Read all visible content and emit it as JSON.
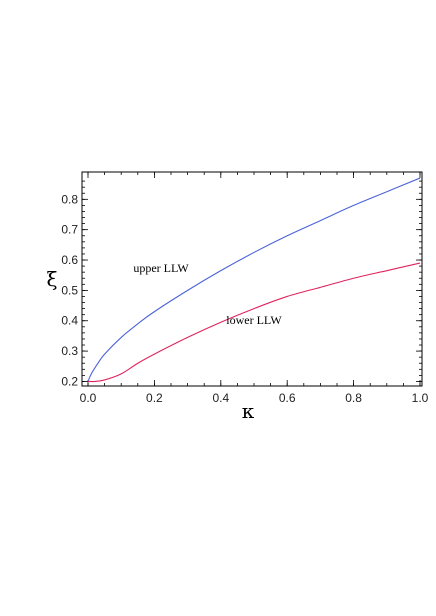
{
  "chart_data": {
    "type": "line",
    "title": "",
    "xlabel": "κ",
    "ylabel": "ξ",
    "xlim": [
      0.0,
      1.0
    ],
    "ylim": [
      0.185,
      0.89
    ],
    "grid": false,
    "x_ticks": [
      0.0,
      0.2,
      0.4,
      0.6,
      0.8,
      1.0
    ],
    "x_tick_labels": [
      "0.0",
      "0.2",
      "0.4",
      "0.6",
      "0.8",
      "1.0"
    ],
    "y_ticks": [
      0.2,
      0.3,
      0.4,
      0.5,
      0.6,
      0.7,
      0.8
    ],
    "y_tick_labels": [
      "0.2",
      "0.3",
      "0.4",
      "0.5",
      "0.6",
      "0.7",
      "0.8"
    ],
    "series": [
      {
        "name": "upper LLW",
        "color": "#4a63d8",
        "x": [
          0.0,
          0.01,
          0.03,
          0.05,
          0.1,
          0.15,
          0.2,
          0.3,
          0.4,
          0.5,
          0.6,
          0.7,
          0.8,
          0.9,
          1.0
        ],
        "y": [
          0.2,
          0.225,
          0.26,
          0.29,
          0.345,
          0.39,
          0.43,
          0.5,
          0.565,
          0.625,
          0.68,
          0.73,
          0.78,
          0.825,
          0.87
        ]
      },
      {
        "name": "lower LLW",
        "color": "#e0245e",
        "x": [
          0.0,
          0.02,
          0.05,
          0.1,
          0.15,
          0.2,
          0.3,
          0.4,
          0.5,
          0.6,
          0.7,
          0.8,
          0.9,
          1.0
        ],
        "y": [
          0.2,
          0.2,
          0.205,
          0.225,
          0.26,
          0.29,
          0.345,
          0.395,
          0.44,
          0.48,
          0.51,
          0.54,
          0.565,
          0.59
        ]
      }
    ],
    "annotations": [
      {
        "text": "upper LLW",
        "x": 0.22,
        "y": 0.56
      },
      {
        "text": "lower LLW",
        "x": 0.5,
        "y": 0.39
      }
    ]
  }
}
